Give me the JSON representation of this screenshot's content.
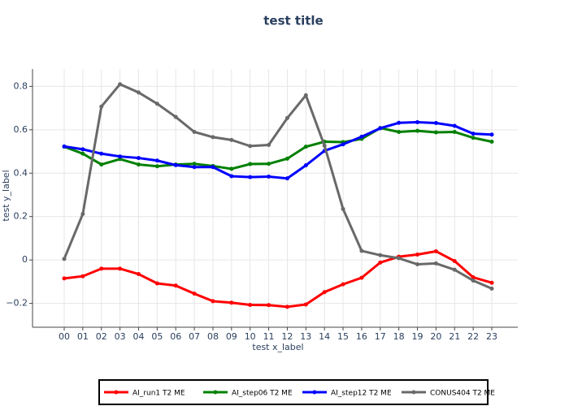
{
  "chart_data": {
    "type": "line",
    "title": "test title",
    "x_label": "test x_label",
    "y_label": "test y_label",
    "categories": [
      "00",
      "01",
      "02",
      "03",
      "04",
      "05",
      "06",
      "07",
      "08",
      "09",
      "10",
      "11",
      "12",
      "13",
      "14",
      "15",
      "16",
      "17",
      "18",
      "19",
      "20",
      "21",
      "22",
      "23"
    ],
    "series": [
      {
        "name": "AI_run1 T2 ME",
        "color": "#ff0000",
        "values": [
          -0.085,
          -0.075,
          -0.04,
          -0.04,
          -0.065,
          -0.108,
          -0.118,
          -0.155,
          -0.19,
          -0.197,
          -0.207,
          -0.208,
          -0.216,
          -0.205,
          -0.148,
          -0.112,
          -0.082,
          -0.012,
          0.015,
          0.025,
          0.04,
          -0.005,
          -0.08,
          -0.105
        ]
      },
      {
        "name": "AI_step06 T2 ME",
        "color": "#008000",
        "values": [
          0.522,
          0.49,
          0.44,
          0.465,
          0.44,
          0.432,
          0.44,
          0.443,
          0.433,
          0.42,
          0.442,
          0.443,
          0.467,
          0.522,
          0.545,
          0.543,
          0.558,
          0.608,
          0.59,
          0.595,
          0.588,
          0.59,
          0.563,
          0.545
        ]
      },
      {
        "name": "AI_step12 T2 ME",
        "color": "#0000ff",
        "values": [
          0.523,
          0.51,
          0.49,
          0.477,
          0.47,
          0.458,
          0.437,
          0.428,
          0.428,
          0.386,
          0.382,
          0.384,
          0.376,
          0.436,
          0.503,
          0.533,
          0.568,
          0.607,
          0.632,
          0.635,
          0.631,
          0.618,
          0.582,
          0.578
        ]
      },
      {
        "name": "CONUS404 T2 ME",
        "color": "#696969",
        "values": [
          0.005,
          0.212,
          0.707,
          0.81,
          0.772,
          0.72,
          0.659,
          0.59,
          0.566,
          0.553,
          0.525,
          0.53,
          0.654,
          0.759,
          0.527,
          0.235,
          0.042,
          0.022,
          0.008,
          -0.02,
          -0.016,
          -0.045,
          -0.095,
          -0.132
        ]
      }
    ],
    "ylim": [
      -0.31,
      0.88
    ],
    "yticks": [
      {
        "value": -0.2,
        "label": "−0.2"
      },
      0,
      0.2,
      0.4,
      0.6,
      0.8
    ],
    "grid": true,
    "legend": "bottom"
  }
}
